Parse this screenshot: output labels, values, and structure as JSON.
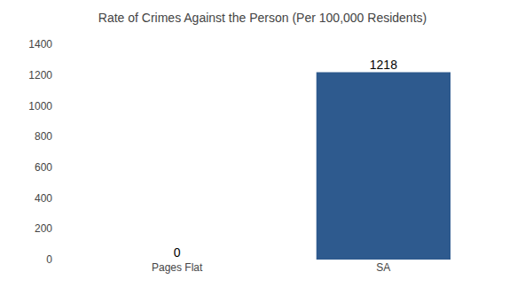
{
  "chart_data": {
    "type": "bar",
    "title": "Rate of Crimes Against the Person (Per 100,000 Residents)",
    "categories": [
      "Pages Flat",
      "SA"
    ],
    "values": [
      0,
      1218
    ],
    "color": "#2e5a8e",
    "ylim": [
      0,
      1400
    ],
    "yticks": [
      0,
      200,
      400,
      600,
      800,
      1000,
      1200,
      1400
    ],
    "grid": false,
    "data_labels": true
  }
}
